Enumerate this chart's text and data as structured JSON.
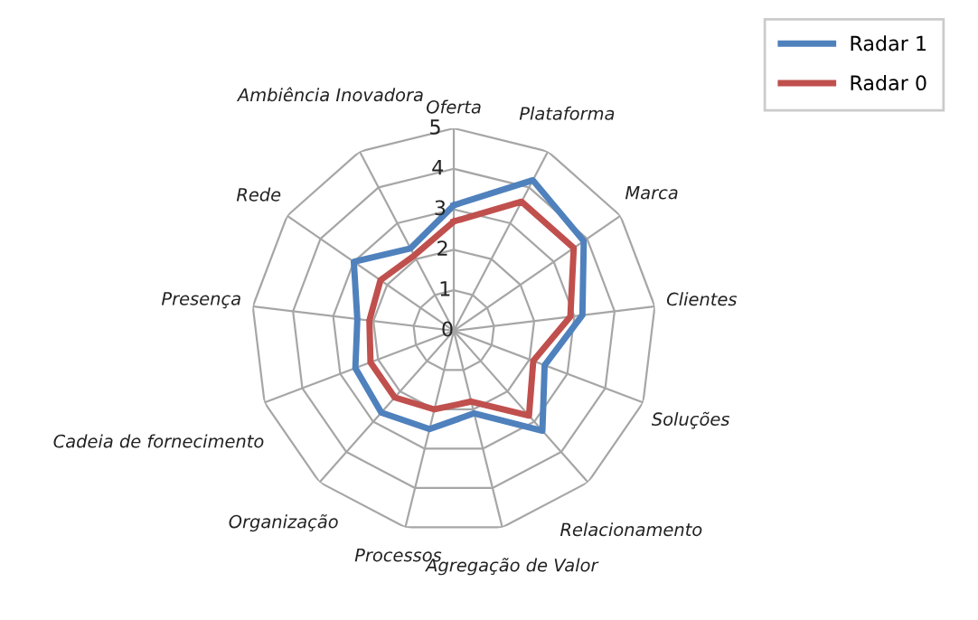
{
  "chart_data": {
    "type": "radar",
    "categories": [
      "Oferta",
      "Plataforma",
      "Marca",
      "Clientes",
      "Soluções",
      "Relacionamento",
      "Agregação de Valor",
      "Processos",
      "Organização",
      "Cadeia de fornecimento",
      "Presença",
      "Rede",
      "Ambiência Inovadora"
    ],
    "series": [
      {
        "name": "Radar 1",
        "color": "#4f81bd",
        "values": [
          3.1,
          4.2,
          3.9,
          3.2,
          2.4,
          3.3,
          2.1,
          2.5,
          2.7,
          2.6,
          2.4,
          3.0,
          2.3
        ]
      },
      {
        "name": "Radar 0",
        "color": "#c0504d",
        "values": [
          2.7,
          3.6,
          3.6,
          2.9,
          2.1,
          2.8,
          1.8,
          2.0,
          2.2,
          2.2,
          2.1,
          2.2,
          2.1
        ]
      }
    ],
    "ylim": [
      0,
      5
    ],
    "yticks": [
      0,
      1,
      2,
      3,
      4,
      5
    ],
    "grid": true,
    "legend": "top right",
    "marker": "none",
    "line_style": "solid"
  }
}
